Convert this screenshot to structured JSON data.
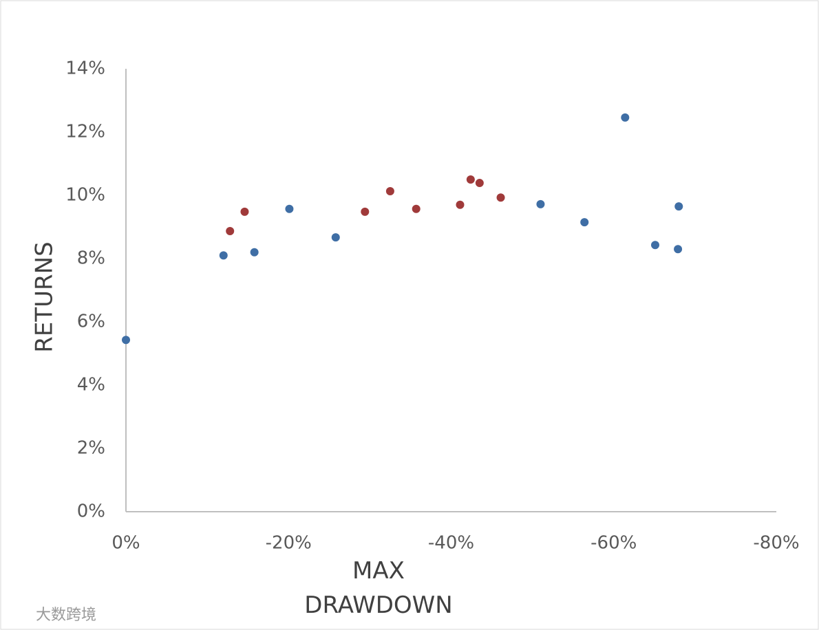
{
  "chart_data": {
    "type": "scatter",
    "x_label": "MAX DRAWDOWN",
    "y_label": "RETURNS",
    "xlim": [
      0,
      -80
    ],
    "ylim": [
      0,
      14
    ],
    "xticks": [
      {
        "value": 0,
        "label": "0%"
      },
      {
        "value": -20,
        "label": "-20%"
      },
      {
        "value": -40,
        "label": "-40%"
      },
      {
        "value": -60,
        "label": "-60%"
      },
      {
        "value": -80,
        "label": "-80%"
      }
    ],
    "yticks": [
      {
        "value": 0,
        "label": "0%"
      },
      {
        "value": 2,
        "label": "2%"
      },
      {
        "value": 4,
        "label": "4%"
      },
      {
        "value": 6,
        "label": "6%"
      },
      {
        "value": 8,
        "label": "8%"
      },
      {
        "value": 10,
        "label": "10%"
      },
      {
        "value": 12,
        "label": "12%"
      },
      {
        "value": 14,
        "label": "14%"
      }
    ],
    "grid": false,
    "series": [
      {
        "color": "#3f6ea5",
        "x": [
          0,
          -12.0,
          -15.8,
          -20.1,
          -25.8,
          -51.0,
          -56.4,
          -61.4,
          -65.1,
          -67.9,
          -68.0
        ],
        "values": [
          5.43,
          8.1,
          8.2,
          9.57,
          8.67,
          9.72,
          9.15,
          12.46,
          8.43,
          8.3,
          9.65
        ]
      },
      {
        "color": "#a03a3a",
        "x": [
          -12.8,
          -14.6,
          -29.4,
          -32.5,
          -35.7,
          -41.1,
          -42.4,
          -43.5,
          -46.1
        ],
        "values": [
          8.87,
          9.48,
          9.48,
          10.13,
          9.57,
          9.7,
          10.5,
          10.39,
          9.93
        ]
      }
    ]
  },
  "watermark": "大数跨境"
}
